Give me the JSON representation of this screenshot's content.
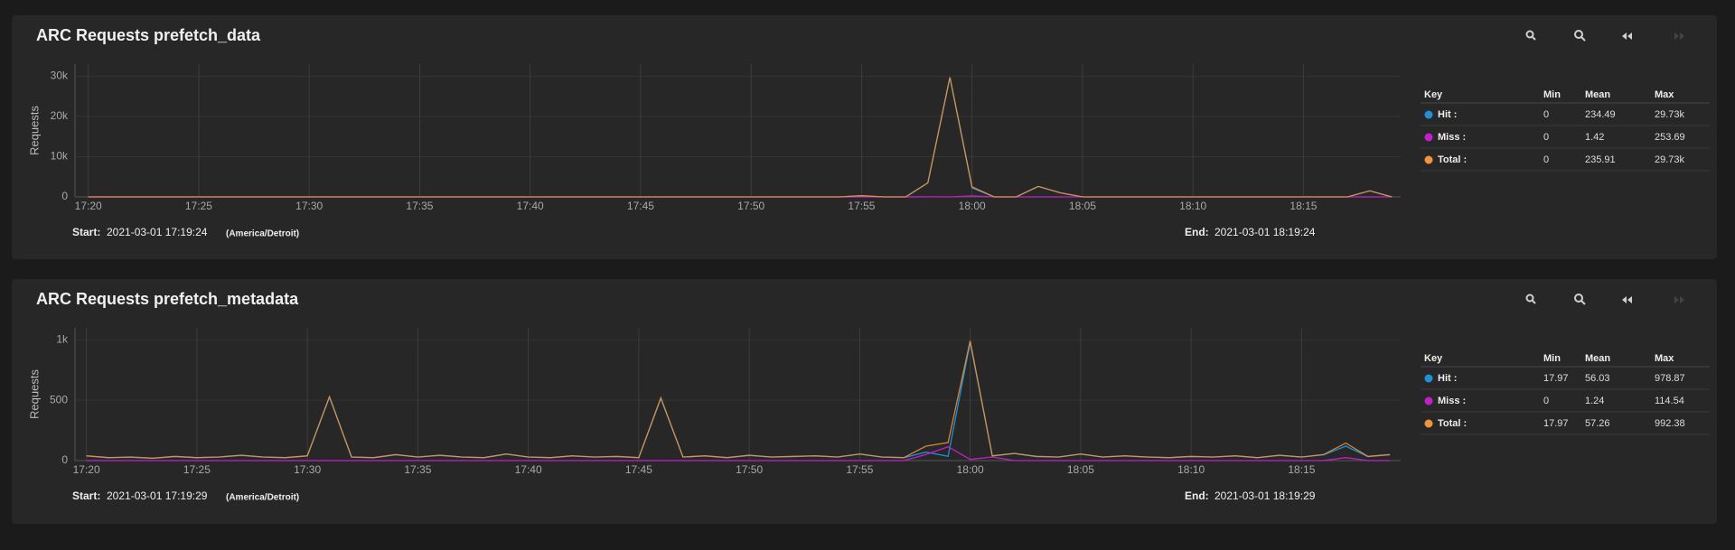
{
  "chart_data": [
    {
      "type": "line",
      "title": "ARC Requests prefetch_data",
      "ylabel": "Requests",
      "x": [
        "17:20",
        "17:21",
        "17:22",
        "17:23",
        "17:24",
        "17:25",
        "17:26",
        "17:27",
        "17:28",
        "17:29",
        "17:30",
        "17:31",
        "17:32",
        "17:33",
        "17:34",
        "17:35",
        "17:36",
        "17:37",
        "17:38",
        "17:39",
        "17:40",
        "17:41",
        "17:42",
        "17:43",
        "17:44",
        "17:45",
        "17:46",
        "17:47",
        "17:48",
        "17:49",
        "17:50",
        "17:51",
        "17:52",
        "17:53",
        "17:54",
        "17:55",
        "17:56",
        "17:57",
        "17:58",
        "17:59",
        "18:00",
        "18:01",
        "18:02",
        "18:03",
        "18:04",
        "18:05",
        "18:06",
        "18:07",
        "18:08",
        "18:09",
        "18:10",
        "18:11",
        "18:12",
        "18:13",
        "18:14",
        "18:15",
        "18:16",
        "18:17",
        "18:18",
        "18:19"
      ],
      "xlim": [
        "17:19:24",
        "18:19:24"
      ],
      "xticks": [
        "17:20",
        "17:25",
        "17:30",
        "17:35",
        "17:40",
        "17:45",
        "17:50",
        "17:55",
        "18:00",
        "18:05",
        "18:10",
        "18:15"
      ],
      "ylim": [
        0,
        33000
      ],
      "yticks": [
        0,
        {
          "value": 10000,
          "label": "10k"
        },
        {
          "value": 20000,
          "label": "20k"
        },
        {
          "value": 30000,
          "label": "30k"
        }
      ],
      "grid": true,
      "series": [
        {
          "name": "Hit :",
          "color": "#1f8fd6",
          "values": [
            0,
            0,
            0,
            0,
            0,
            0,
            0,
            0,
            0,
            0,
            0,
            0,
            0,
            0,
            0,
            0,
            0,
            0,
            0,
            0,
            0,
            0,
            0,
            0,
            0,
            0,
            0,
            0,
            0,
            0,
            0,
            0,
            0,
            0,
            0,
            300,
            0,
            0,
            3470,
            29730,
            2250,
            0,
            0,
            2600,
            1000,
            0,
            0,
            0,
            0,
            0,
            0,
            0,
            0,
            0,
            0,
            0,
            0,
            0,
            1500,
            0
          ]
        },
        {
          "name": "Miss :",
          "color": "#c21fc9",
          "values": [
            0,
            0,
            0,
            0,
            0,
            0,
            0,
            0,
            0,
            0,
            0,
            0,
            0,
            0,
            0,
            0,
            0,
            0,
            0,
            0,
            0,
            0,
            0,
            0,
            0,
            0,
            0,
            0,
            0,
            0,
            0,
            0,
            0,
            0,
            0,
            0,
            0,
            0,
            30,
            0,
            253.69,
            0,
            0,
            0,
            0,
            0,
            0,
            0,
            0,
            0,
            0,
            0,
            0,
            0,
            0,
            0,
            0,
            0,
            0,
            0
          ]
        },
        {
          "name": "Total :",
          "color": "#f0953c",
          "values": [
            0,
            0,
            0,
            0,
            0,
            0,
            0,
            0,
            0,
            0,
            0,
            0,
            0,
            0,
            0,
            0,
            0,
            0,
            0,
            0,
            0,
            0,
            0,
            0,
            0,
            0,
            0,
            0,
            0,
            0,
            0,
            0,
            0,
            0,
            0,
            300,
            0,
            0,
            3500,
            29730,
            2500,
            0,
            0,
            2600,
            1000,
            0,
            0,
            0,
            0,
            0,
            0,
            0,
            0,
            0,
            0,
            0,
            0,
            0,
            1500,
            0
          ]
        }
      ],
      "start": {
        "label": "Start:",
        "time": "2021-03-01 17:19:24",
        "zone": "(America/Detroit)"
      },
      "end": {
        "label": "End:",
        "time": "2021-03-01 18:19:24"
      },
      "key_table": {
        "header": [
          "Key",
          "Min",
          "Mean",
          "Max"
        ],
        "rows": [
          [
            "0",
            "234.49",
            "29.73k"
          ],
          [
            "0",
            "1.42",
            "253.69"
          ],
          [
            "0",
            "235.91",
            "29.73k"
          ]
        ]
      }
    },
    {
      "type": "line",
      "title": "ARC Requests prefetch_metadata",
      "ylabel": "Requests",
      "x": [
        "17:20",
        "17:21",
        "17:22",
        "17:23",
        "17:24",
        "17:25",
        "17:26",
        "17:27",
        "17:28",
        "17:29",
        "17:30",
        "17:31",
        "17:32",
        "17:33",
        "17:34",
        "17:35",
        "17:36",
        "17:37",
        "17:38",
        "17:39",
        "17:40",
        "17:41",
        "17:42",
        "17:43",
        "17:44",
        "17:45",
        "17:46",
        "17:47",
        "17:48",
        "17:49",
        "17:50",
        "17:51",
        "17:52",
        "17:53",
        "17:54",
        "17:55",
        "17:56",
        "17:57",
        "17:58",
        "17:59",
        "18:00",
        "18:01",
        "18:02",
        "18:03",
        "18:04",
        "18:05",
        "18:06",
        "18:07",
        "18:08",
        "18:09",
        "18:10",
        "18:11",
        "18:12",
        "18:13",
        "18:14",
        "18:15",
        "18:16",
        "18:17",
        "18:18",
        "18:19"
      ],
      "xlim": [
        "17:19:29",
        "18:19:29"
      ],
      "xticks": [
        "17:20",
        "17:25",
        "17:30",
        "17:35",
        "17:40",
        "17:45",
        "17:50",
        "17:55",
        "18:00",
        "18:05",
        "18:10",
        "18:15"
      ],
      "ylim": [
        0,
        1100
      ],
      "yticks": [
        0,
        500,
        {
          "value": 1000,
          "label": "1k"
        }
      ],
      "grid": true,
      "series": [
        {
          "name": "Hit :",
          "color": "#1f8fd6",
          "values": [
            38,
            24,
            28,
            19,
            33,
            24,
            29,
            43,
            29,
            24,
            38,
            525,
            29,
            24,
            48,
            29,
            43,
            29,
            24,
            53,
            29,
            24,
            38,
            29,
            33,
            24,
            515,
            29,
            38,
            24,
            43,
            29,
            33,
            38,
            29,
            53,
            29,
            24,
            70,
            35,
            978.87,
            38,
            58,
            33,
            29,
            53,
            29,
            38,
            29,
            24,
            33,
            29,
            38,
            24,
            43,
            29,
            48,
            120,
            33,
            48
          ]
        },
        {
          "name": "Miss :",
          "color": "#c21fc9",
          "values": [
            0,
            0,
            0,
            0,
            0,
            0,
            0,
            0,
            0,
            0,
            0,
            0,
            0,
            0,
            0,
            0,
            0,
            0,
            0,
            0,
            0,
            0,
            0,
            0,
            0,
            0,
            0,
            0,
            0,
            0,
            0,
            0,
            0,
            0,
            0,
            0,
            0,
            0,
            50,
            114.54,
            10,
            30,
            0,
            0,
            0,
            0,
            0,
            0,
            0,
            0,
            0,
            0,
            0,
            0,
            0,
            0,
            0,
            25,
            0,
            0
          ]
        },
        {
          "name": "Total :",
          "color": "#f0953c",
          "values": [
            40,
            25,
            30,
            20,
            35,
            25,
            30,
            45,
            30,
            25,
            40,
            530,
            30,
            25,
            50,
            30,
            45,
            30,
            25,
            55,
            30,
            25,
            40,
            30,
            35,
            25,
            520,
            30,
            40,
            25,
            45,
            30,
            35,
            40,
            30,
            55,
            30,
            25,
            120,
            150,
            992.38,
            40,
            60,
            35,
            30,
            55,
            30,
            40,
            30,
            25,
            35,
            30,
            40,
            25,
            45,
            30,
            50,
            145,
            35,
            50
          ]
        }
      ],
      "start": {
        "label": "Start:",
        "time": "2021-03-01 17:19:29",
        "zone": "(America/Detroit)"
      },
      "end": {
        "label": "End:",
        "time": "2021-03-01 18:19:29"
      },
      "key_table": {
        "header": [
          "Key",
          "Min",
          "Mean",
          "Max"
        ],
        "rows": [
          [
            "17.97",
            "56.03",
            "978.87"
          ],
          [
            "0",
            "1.24",
            "114.54"
          ],
          [
            "17.97",
            "57.26",
            "992.38"
          ]
        ]
      }
    }
  ]
}
